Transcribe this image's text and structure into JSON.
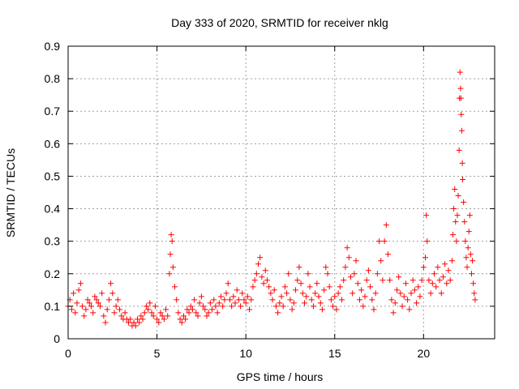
{
  "chart_data": {
    "type": "scatter",
    "title": "Day 333 of 2020, SRMTID for receiver nklg",
    "xlabel": "GPS time / hours",
    "ylabel": "SRMTID / TECUs",
    "xlim": [
      0,
      24
    ],
    "ylim": [
      0,
      0.9
    ],
    "xticks": [
      0,
      5,
      10,
      15,
      20
    ],
    "yticks": [
      0,
      0.1,
      0.2,
      0.3,
      0.4,
      0.5,
      0.6,
      0.7,
      0.8,
      0.9
    ],
    "xtick_labels": [
      "0",
      "5",
      "10",
      "15",
      "20"
    ],
    "ytick_labels": [
      "0",
      "0.1",
      "0.2",
      "0.3",
      "0.4",
      "0.5",
      "0.6",
      "0.7",
      "0.8",
      "0.9"
    ],
    "grid": true,
    "marker": "+",
    "color": "#ff0000",
    "series": [
      {
        "name": "SRMTID",
        "points": [
          [
            0.0,
            0.1
          ],
          [
            0.1,
            0.12
          ],
          [
            0.2,
            0.09
          ],
          [
            0.3,
            0.14
          ],
          [
            0.4,
            0.08
          ],
          [
            0.5,
            0.11
          ],
          [
            0.6,
            0.15
          ],
          [
            0.7,
            0.17
          ],
          [
            0.8,
            0.1
          ],
          [
            0.9,
            0.07
          ],
          [
            1.0,
            0.09
          ],
          [
            1.1,
            0.12
          ],
          [
            1.2,
            0.11
          ],
          [
            1.3,
            0.1
          ],
          [
            1.4,
            0.08
          ],
          [
            1.5,
            0.13
          ],
          [
            1.6,
            0.12
          ],
          [
            1.7,
            0.11
          ],
          [
            1.8,
            0.1
          ],
          [
            1.9,
            0.14
          ],
          [
            2.0,
            0.07
          ],
          [
            2.1,
            0.05
          ],
          [
            2.2,
            0.09
          ],
          [
            2.3,
            0.12
          ],
          [
            2.4,
            0.17
          ],
          [
            2.5,
            0.14
          ],
          [
            2.6,
            0.08
          ],
          [
            2.7,
            0.1
          ],
          [
            2.8,
            0.12
          ],
          [
            2.9,
            0.09
          ],
          [
            3.0,
            0.07
          ],
          [
            3.1,
            0.06
          ],
          [
            3.2,
            0.08
          ],
          [
            3.3,
            0.06
          ],
          [
            3.4,
            0.05
          ],
          [
            3.5,
            0.06
          ],
          [
            3.6,
            0.04
          ],
          [
            3.7,
            0.05
          ],
          [
            3.8,
            0.04
          ],
          [
            3.9,
            0.06
          ],
          [
            4.0,
            0.05
          ],
          [
            4.1,
            0.07
          ],
          [
            4.2,
            0.06
          ],
          [
            4.3,
            0.08
          ],
          [
            4.4,
            0.1
          ],
          [
            4.5,
            0.09
          ],
          [
            4.6,
            0.11
          ],
          [
            4.7,
            0.08
          ],
          [
            4.8,
            0.07
          ],
          [
            4.9,
            0.1
          ],
          [
            5.0,
            0.06
          ],
          [
            5.1,
            0.05
          ],
          [
            5.2,
            0.08
          ],
          [
            5.3,
            0.07
          ],
          [
            5.4,
            0.06
          ],
          [
            5.5,
            0.09
          ],
          [
            5.6,
            0.07
          ],
          [
            5.7,
            0.2
          ],
          [
            5.75,
            0.26
          ],
          [
            5.8,
            0.32
          ],
          [
            5.85,
            0.3
          ],
          [
            5.9,
            0.22
          ],
          [
            6.0,
            0.16
          ],
          [
            6.1,
            0.12
          ],
          [
            6.2,
            0.08
          ],
          [
            6.3,
            0.06
          ],
          [
            6.4,
            0.05
          ],
          [
            6.5,
            0.07
          ],
          [
            6.6,
            0.06
          ],
          [
            6.7,
            0.09
          ],
          [
            6.8,
            0.08
          ],
          [
            6.9,
            0.1
          ],
          [
            7.0,
            0.09
          ],
          [
            7.1,
            0.12
          ],
          [
            7.2,
            0.08
          ],
          [
            7.3,
            0.07
          ],
          [
            7.4,
            0.11
          ],
          [
            7.5,
            0.13
          ],
          [
            7.6,
            0.1
          ],
          [
            7.7,
            0.09
          ],
          [
            7.8,
            0.07
          ],
          [
            7.9,
            0.08
          ],
          [
            8.0,
            0.11
          ],
          [
            8.1,
            0.09
          ],
          [
            8.2,
            0.12
          ],
          [
            8.3,
            0.1
          ],
          [
            8.4,
            0.08
          ],
          [
            8.5,
            0.11
          ],
          [
            8.6,
            0.13
          ],
          [
            8.7,
            0.1
          ],
          [
            8.8,
            0.12
          ],
          [
            8.9,
            0.14
          ],
          [
            9.0,
            0.17
          ],
          [
            9.1,
            0.12
          ],
          [
            9.2,
            0.1
          ],
          [
            9.3,
            0.13
          ],
          [
            9.4,
            0.11
          ],
          [
            9.5,
            0.15
          ],
          [
            9.6,
            0.12
          ],
          [
            9.7,
            0.1
          ],
          [
            9.8,
            0.14
          ],
          [
            9.9,
            0.12
          ],
          [
            10.0,
            0.11
          ],
          [
            10.1,
            0.13
          ],
          [
            10.2,
            0.09
          ],
          [
            10.3,
            0.12
          ],
          [
            10.4,
            0.16
          ],
          [
            10.5,
            0.18
          ],
          [
            10.6,
            0.2
          ],
          [
            10.7,
            0.23
          ],
          [
            10.8,
            0.25
          ],
          [
            10.9,
            0.19
          ],
          [
            11.0,
            0.17
          ],
          [
            11.1,
            0.21
          ],
          [
            11.2,
            0.18
          ],
          [
            11.3,
            0.16
          ],
          [
            11.4,
            0.14
          ],
          [
            11.5,
            0.12
          ],
          [
            11.6,
            0.15
          ],
          [
            11.7,
            0.1
          ],
          [
            11.8,
            0.08
          ],
          [
            11.9,
            0.11
          ],
          [
            12.0,
            0.13
          ],
          [
            12.1,
            0.1
          ],
          [
            12.2,
            0.16
          ],
          [
            12.3,
            0.14
          ],
          [
            12.4,
            0.2
          ],
          [
            12.5,
            0.12
          ],
          [
            12.6,
            0.09
          ],
          [
            12.7,
            0.11
          ],
          [
            12.8,
            0.15
          ],
          [
            12.9,
            0.18
          ],
          [
            13.0,
            0.22
          ],
          [
            13.1,
            0.17
          ],
          [
            13.2,
            0.14
          ],
          [
            13.3,
            0.11
          ],
          [
            13.4,
            0.13
          ],
          [
            13.5,
            0.2
          ],
          [
            13.6,
            0.16
          ],
          [
            13.7,
            0.12
          ],
          [
            13.8,
            0.1
          ],
          [
            13.9,
            0.14
          ],
          [
            14.0,
            0.17
          ],
          [
            14.1,
            0.13
          ],
          [
            14.2,
            0.11
          ],
          [
            14.3,
            0.09
          ],
          [
            14.4,
            0.15
          ],
          [
            14.5,
            0.22
          ],
          [
            14.6,
            0.2
          ],
          [
            14.7,
            0.16
          ],
          [
            14.8,
            0.12
          ],
          [
            14.9,
            0.1
          ],
          [
            15.0,
            0.13
          ],
          [
            15.1,
            0.09
          ],
          [
            15.2,
            0.14
          ],
          [
            15.3,
            0.16
          ],
          [
            15.4,
            0.12
          ],
          [
            15.5,
            0.18
          ],
          [
            15.6,
            0.22
          ],
          [
            15.7,
            0.28
          ],
          [
            15.8,
            0.25
          ],
          [
            15.9,
            0.19
          ],
          [
            16.0,
            0.14
          ],
          [
            16.1,
            0.2
          ],
          [
            16.2,
            0.24
          ],
          [
            16.3,
            0.17
          ],
          [
            16.4,
            0.12
          ],
          [
            16.5,
            0.15
          ],
          [
            16.6,
            0.1
          ],
          [
            16.7,
            0.13
          ],
          [
            16.8,
            0.18
          ],
          [
            16.9,
            0.21
          ],
          [
            17.0,
            0.16
          ],
          [
            17.1,
            0.12
          ],
          [
            17.2,
            0.09
          ],
          [
            17.3,
            0.14
          ],
          [
            17.4,
            0.2
          ],
          [
            17.5,
            0.3
          ],
          [
            17.6,
            0.24
          ],
          [
            17.7,
            0.18
          ],
          [
            17.8,
            0.3
          ],
          [
            17.9,
            0.35
          ],
          [
            18.0,
            0.26
          ],
          [
            18.1,
            0.18
          ],
          [
            18.2,
            0.12
          ],
          [
            18.3,
            0.08
          ],
          [
            18.4,
            0.11
          ],
          [
            18.5,
            0.15
          ],
          [
            18.6,
            0.19
          ],
          [
            18.7,
            0.14
          ],
          [
            18.8,
            0.1
          ],
          [
            18.9,
            0.13
          ],
          [
            19.0,
            0.17
          ],
          [
            19.1,
            0.12
          ],
          [
            19.2,
            0.09
          ],
          [
            19.3,
            0.14
          ],
          [
            19.4,
            0.18
          ],
          [
            19.5,
            0.15
          ],
          [
            19.6,
            0.11
          ],
          [
            19.7,
            0.16
          ],
          [
            19.8,
            0.13
          ],
          [
            19.9,
            0.18
          ],
          [
            20.0,
            0.22
          ],
          [
            20.1,
            0.25
          ],
          [
            20.15,
            0.38
          ],
          [
            20.2,
            0.3
          ],
          [
            20.3,
            0.18
          ],
          [
            20.4,
            0.14
          ],
          [
            20.5,
            0.17
          ],
          [
            20.6,
            0.2
          ],
          [
            20.7,
            0.16
          ],
          [
            20.8,
            0.22
          ],
          [
            20.9,
            0.18
          ],
          [
            21.0,
            0.14
          ],
          [
            21.1,
            0.19
          ],
          [
            21.2,
            0.23
          ],
          [
            21.3,
            0.17
          ],
          [
            21.4,
            0.21
          ],
          [
            21.5,
            0.18
          ],
          [
            21.6,
            0.24
          ],
          [
            21.65,
            0.32
          ],
          [
            21.7,
            0.4
          ],
          [
            21.75,
            0.46
          ],
          [
            21.8,
            0.36
          ],
          [
            21.85,
            0.3
          ],
          [
            21.9,
            0.38
          ],
          [
            21.95,
            0.44
          ],
          [
            22.0,
            0.58
          ],
          [
            22.02,
            0.74
          ],
          [
            22.05,
            0.82
          ],
          [
            22.08,
            0.77
          ],
          [
            22.1,
            0.74
          ],
          [
            22.12,
            0.69
          ],
          [
            22.15,
            0.64
          ],
          [
            22.18,
            0.54
          ],
          [
            22.2,
            0.49
          ],
          [
            22.25,
            0.42
          ],
          [
            22.3,
            0.36
          ],
          [
            22.35,
            0.3
          ],
          [
            22.4,
            0.25
          ],
          [
            22.45,
            0.22
          ],
          [
            22.5,
            0.28
          ],
          [
            22.55,
            0.33
          ],
          [
            22.6,
            0.38
          ],
          [
            22.65,
            0.26
          ],
          [
            22.7,
            0.2
          ],
          [
            22.75,
            0.24
          ],
          [
            22.8,
            0.17
          ],
          [
            22.85,
            0.14
          ],
          [
            22.9,
            0.12
          ]
        ]
      }
    ]
  }
}
